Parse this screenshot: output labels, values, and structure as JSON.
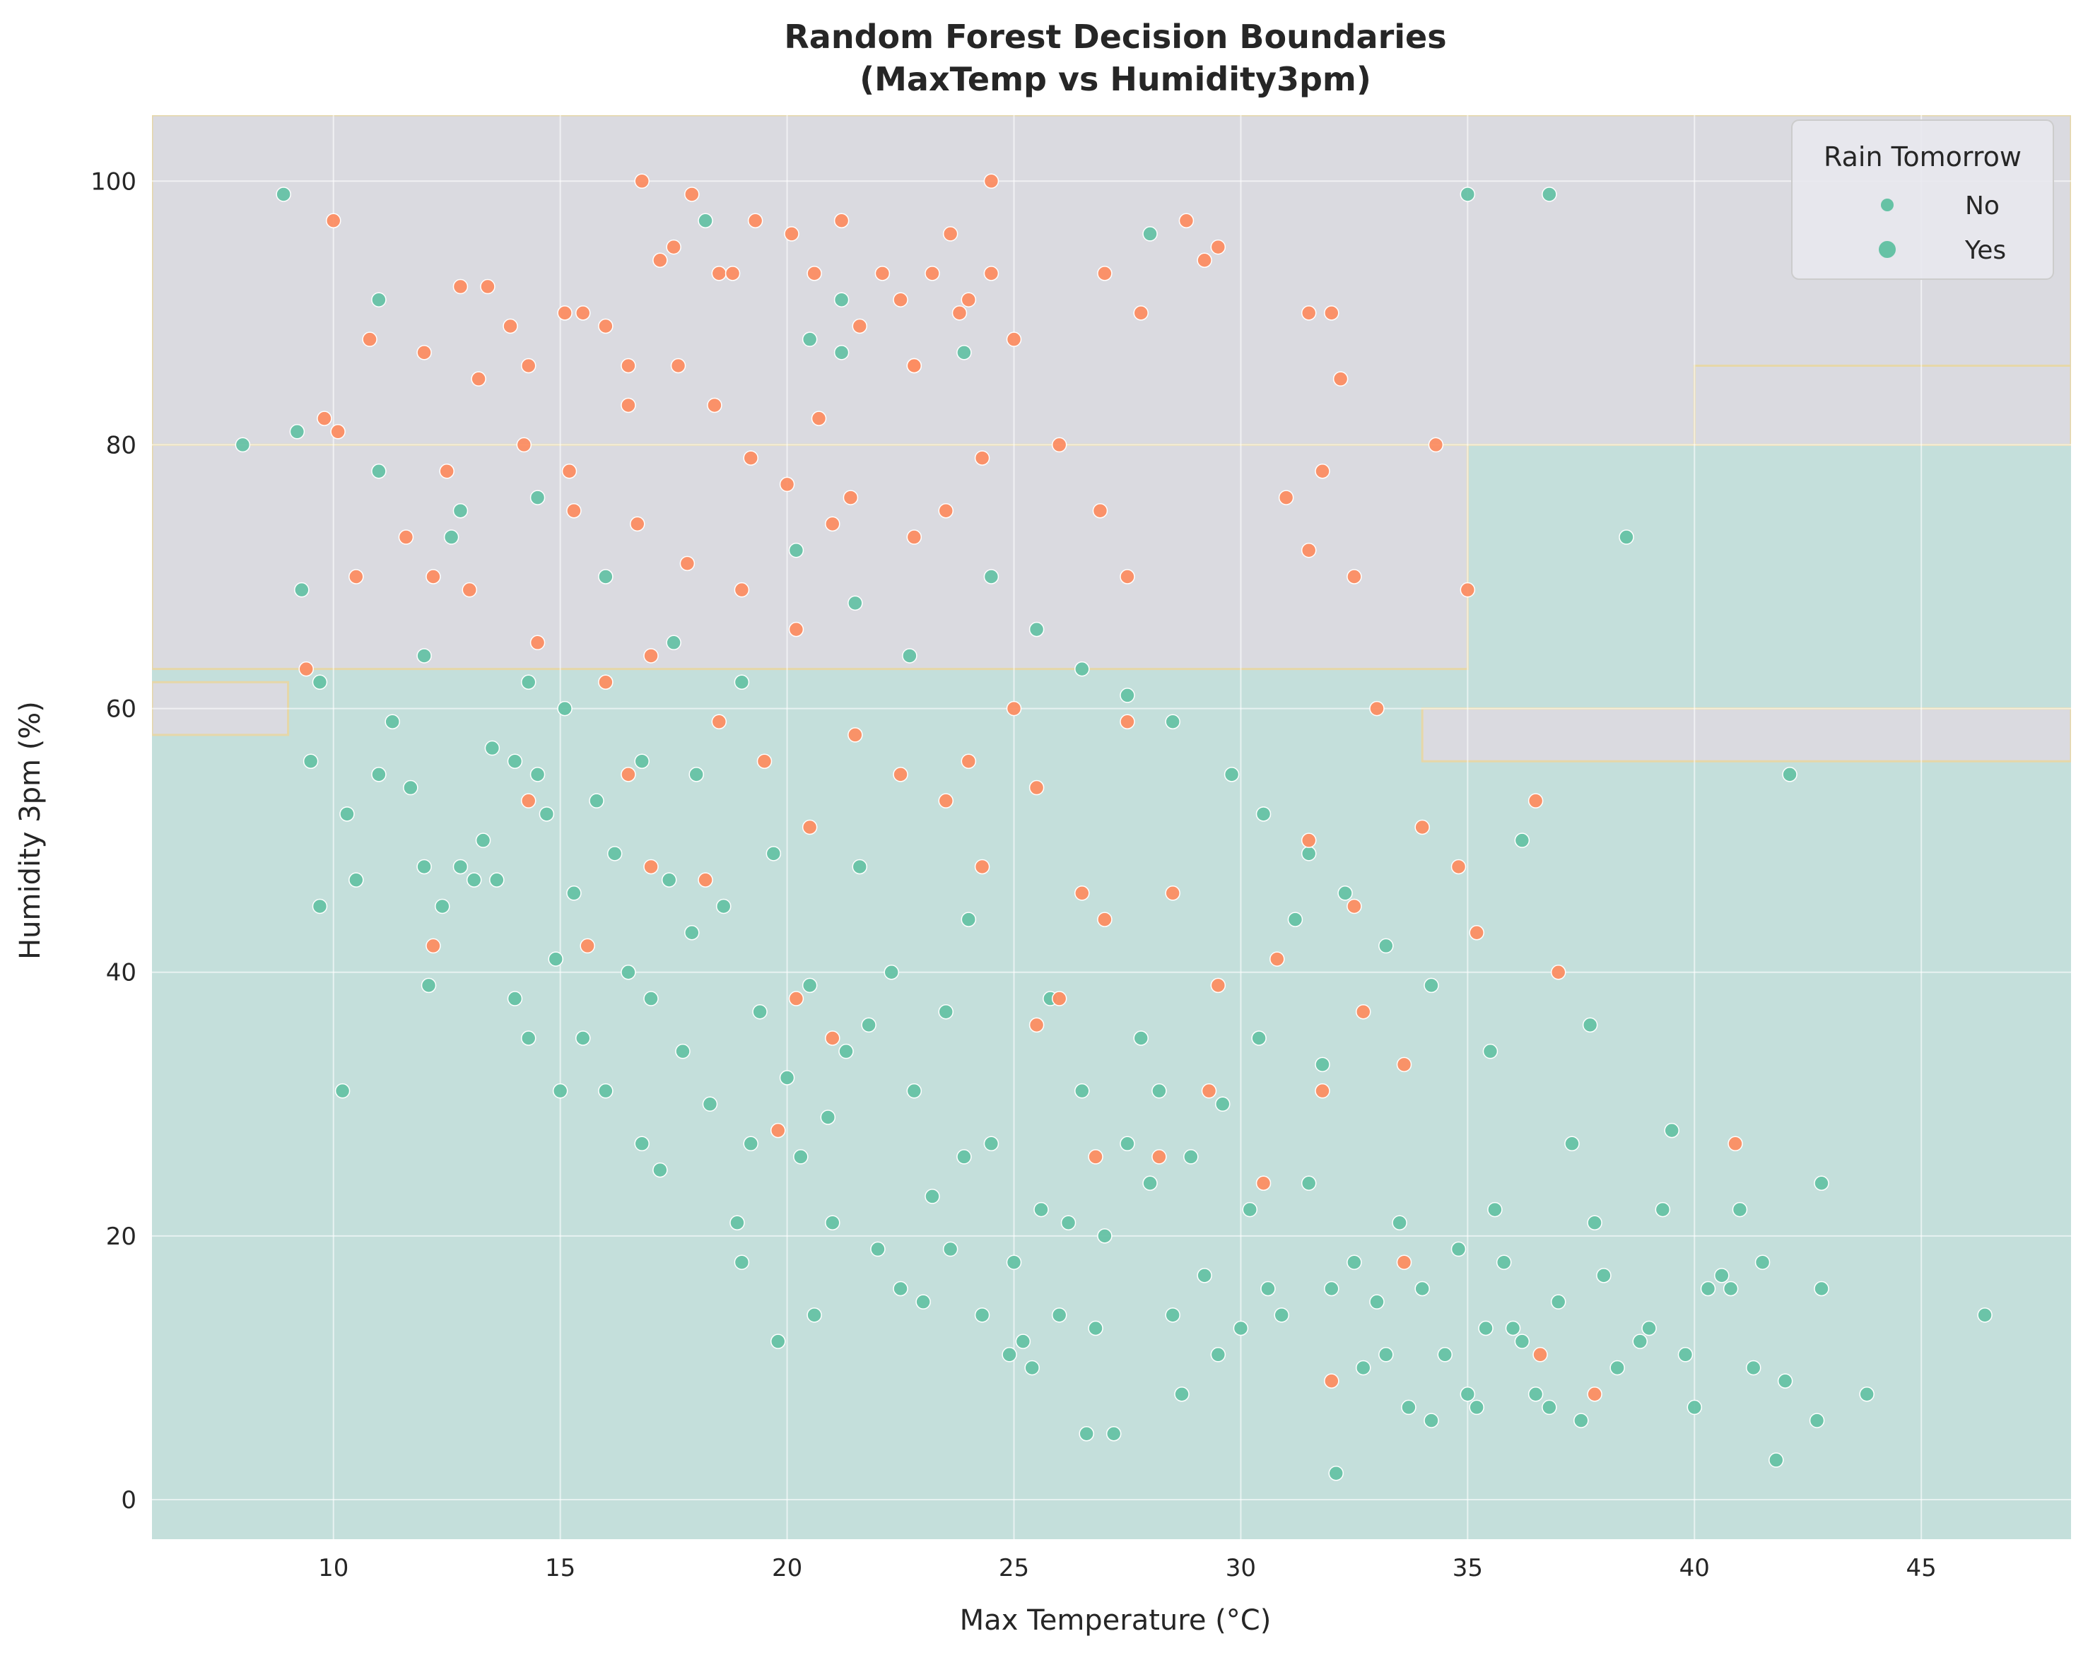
{
  "chart_data": {
    "type": "scatter",
    "title": "Random Forest Decision Boundaries\n(MaxTemp vs Humidity3pm)",
    "xlabel": "Max Temperature (°C)",
    "ylabel": "Humidity 3pm (%)",
    "xlim": [
      6,
      48.3
    ],
    "ylim": [
      -3,
      105
    ],
    "xticks": [
      10,
      15,
      20,
      25,
      30,
      35,
      40,
      45
    ],
    "yticks": [
      0,
      20,
      40,
      60,
      80,
      100
    ],
    "grid": true,
    "legend": {
      "title": "Rain Tomorrow",
      "placement": "top-right"
    },
    "background": {
      "description_class_regions": true,
      "no_region_color": "#c4dfdb",
      "yes_region_color": "#dadae0",
      "boundary_color": "#e6d7a8",
      "yes_regions": [
        {
          "x": [
            6,
            48.3
          ],
          "y": [
            80,
            105
          ]
        },
        {
          "x": [
            6,
            35
          ],
          "y": [
            63,
            80
          ]
        },
        {
          "x": [
            40,
            48.3
          ],
          "y": [
            80,
            86
          ]
        },
        {
          "x": [
            34,
            48.3
          ],
          "y": [
            56,
            60
          ]
        },
        {
          "x": [
            6,
            9
          ],
          "y": [
            58,
            62
          ]
        }
      ]
    },
    "series": [
      {
        "name": "No",
        "color": "#66c2a5",
        "points": [
          [
            8.9,
            99
          ],
          [
            8,
            80
          ],
          [
            9.3,
            69
          ],
          [
            9.2,
            81
          ],
          [
            9.5,
            56
          ],
          [
            9.7,
            62
          ],
          [
            9.7,
            45
          ],
          [
            10.3,
            52
          ],
          [
            10.2,
            31
          ],
          [
            10.5,
            47
          ],
          [
            11,
            55
          ],
          [
            11,
            78
          ],
          [
            11.3,
            59
          ],
          [
            11.7,
            54
          ],
          [
            12,
            64
          ],
          [
            12,
            48
          ],
          [
            12.1,
            39
          ],
          [
            12.4,
            45
          ],
          [
            12.6,
            73
          ],
          [
            12.8,
            48
          ],
          [
            12.8,
            75
          ],
          [
            13.1,
            47
          ],
          [
            13.3,
            50
          ],
          [
            13.5,
            57
          ],
          [
            13.6,
            47
          ],
          [
            14,
            56
          ],
          [
            14,
            38
          ],
          [
            14.3,
            62
          ],
          [
            14.3,
            35
          ],
          [
            14.5,
            55
          ],
          [
            14.7,
            52
          ],
          [
            14.9,
            41
          ],
          [
            15,
            31
          ],
          [
            15.1,
            60
          ],
          [
            15.3,
            46
          ],
          [
            15.5,
            35
          ],
          [
            15.8,
            53
          ],
          [
            16,
            31
          ],
          [
            16.2,
            49
          ],
          [
            16.5,
            40
          ],
          [
            16.8,
            56
          ],
          [
            16.8,
            27
          ],
          [
            17,
            38
          ],
          [
            17.2,
            25
          ],
          [
            17.4,
            47
          ],
          [
            17.7,
            34
          ],
          [
            17.9,
            43
          ],
          [
            18,
            55
          ],
          [
            18.3,
            30
          ],
          [
            18.6,
            45
          ],
          [
            18.9,
            21
          ],
          [
            19,
            18
          ],
          [
            19.2,
            27
          ],
          [
            19.4,
            37
          ],
          [
            19.7,
            49
          ],
          [
            19.8,
            12
          ],
          [
            20,
            32
          ],
          [
            20.3,
            26
          ],
          [
            20.5,
            39
          ],
          [
            20.6,
            14
          ],
          [
            20.9,
            29
          ],
          [
            21,
            21
          ],
          [
            21.3,
            34
          ],
          [
            21.6,
            48
          ],
          [
            21.8,
            36
          ],
          [
            22,
            19
          ],
          [
            22.3,
            40
          ],
          [
            22.5,
            16
          ],
          [
            22.8,
            31
          ],
          [
            23,
            15
          ],
          [
            23.2,
            23
          ],
          [
            23.5,
            37
          ],
          [
            23.6,
            19
          ],
          [
            23.9,
            26
          ],
          [
            24,
            44
          ],
          [
            24.3,
            14
          ],
          [
            24.5,
            27
          ],
          [
            24.9,
            11
          ],
          [
            25,
            18
          ],
          [
            25.2,
            12
          ],
          [
            25.4,
            10
          ],
          [
            25.6,
            22
          ],
          [
            25.8,
            38
          ],
          [
            26,
            14
          ],
          [
            26.2,
            21
          ],
          [
            26.5,
            31
          ],
          [
            26.6,
            5
          ],
          [
            26.8,
            13
          ],
          [
            27,
            20
          ],
          [
            27.2,
            5
          ],
          [
            27.5,
            27
          ],
          [
            27.8,
            35
          ],
          [
            28,
            24
          ],
          [
            28.2,
            31
          ],
          [
            28.5,
            14
          ],
          [
            28.7,
            8
          ],
          [
            28.9,
            26
          ],
          [
            29.2,
            17
          ],
          [
            29.5,
            11
          ],
          [
            29.6,
            30
          ],
          [
            30,
            13
          ],
          [
            30.2,
            22
          ],
          [
            30.4,
            35
          ],
          [
            30.6,
            16
          ],
          [
            30.9,
            14
          ],
          [
            31.2,
            44
          ],
          [
            31.5,
            24
          ],
          [
            31.8,
            33
          ],
          [
            32,
            16
          ],
          [
            32.1,
            2
          ],
          [
            32.5,
            18
          ],
          [
            32.7,
            10
          ],
          [
            33,
            15
          ],
          [
            33.2,
            11
          ],
          [
            33.5,
            21
          ],
          [
            33.7,
            7
          ],
          [
            34,
            16
          ],
          [
            34.2,
            6
          ],
          [
            34.5,
            11
          ],
          [
            34.8,
            19
          ],
          [
            35,
            8
          ],
          [
            35.2,
            7
          ],
          [
            35.4,
            13
          ],
          [
            35.6,
            22
          ],
          [
            35.8,
            18
          ],
          [
            36,
            13
          ],
          [
            36.2,
            12
          ],
          [
            36.5,
            8
          ],
          [
            36.8,
            7
          ],
          [
            37,
            15
          ],
          [
            37.3,
            27
          ],
          [
            37.5,
            6
          ],
          [
            37.8,
            21
          ],
          [
            38,
            17
          ],
          [
            38.3,
            10
          ],
          [
            38.5,
            73
          ],
          [
            38.8,
            12
          ],
          [
            39,
            13
          ],
          [
            39.3,
            22
          ],
          [
            39.5,
            28
          ],
          [
            39.8,
            11
          ],
          [
            40,
            7
          ],
          [
            40.3,
            16
          ],
          [
            40.6,
            17
          ],
          [
            40.8,
            16
          ],
          [
            41,
            22
          ],
          [
            41.3,
            10
          ],
          [
            41.5,
            18
          ],
          [
            41.8,
            3
          ],
          [
            42,
            9
          ],
          [
            42.1,
            55
          ],
          [
            42.7,
            6
          ],
          [
            42.8,
            16
          ],
          [
            42.8,
            24
          ],
          [
            43.8,
            8
          ],
          [
            46.4,
            14
          ],
          [
            35,
            99
          ],
          [
            36.8,
            99
          ],
          [
            28,
            96
          ],
          [
            18.2,
            97
          ],
          [
            20.5,
            88
          ],
          [
            21.2,
            87
          ],
          [
            21.2,
            91
          ],
          [
            23.9,
            87
          ],
          [
            11,
            91
          ],
          [
            14.5,
            76
          ],
          [
            16,
            70
          ],
          [
            17.5,
            65
          ],
          [
            19,
            62
          ],
          [
            20.2,
            72
          ],
          [
            21.5,
            68
          ],
          [
            22.7,
            64
          ],
          [
            24.5,
            70
          ],
          [
            25.5,
            66
          ],
          [
            26.5,
            63
          ],
          [
            27.5,
            61
          ],
          [
            28.5,
            59
          ],
          [
            29.8,
            55
          ],
          [
            30.5,
            52
          ],
          [
            31.5,
            49
          ],
          [
            32.3,
            46
          ],
          [
            33.2,
            42
          ],
          [
            34.2,
            39
          ],
          [
            35.5,
            34
          ],
          [
            36.2,
            50
          ],
          [
            37.7,
            36
          ]
        ]
      },
      {
        "name": "Yes",
        "color": "#fc8d62",
        "points": [
          [
            10,
            97
          ],
          [
            10.1,
            81
          ],
          [
            10.8,
            88
          ],
          [
            12,
            87
          ],
          [
            12.8,
            92
          ],
          [
            13.4,
            92
          ],
          [
            13.9,
            89
          ],
          [
            14.3,
            86
          ],
          [
            15.1,
            90
          ],
          [
            15.5,
            90
          ],
          [
            16,
            89
          ],
          [
            16.5,
            86
          ],
          [
            16.8,
            100
          ],
          [
            17.2,
            94
          ],
          [
            17.5,
            95
          ],
          [
            17.9,
            99
          ],
          [
            18.5,
            93
          ],
          [
            18.8,
            93
          ],
          [
            19.3,
            97
          ],
          [
            20.1,
            96
          ],
          [
            20.6,
            93
          ],
          [
            21.2,
            97
          ],
          [
            21.6,
            89
          ],
          [
            22.1,
            93
          ],
          [
            22.5,
            91
          ],
          [
            22.8,
            86
          ],
          [
            23.2,
            93
          ],
          [
            23.6,
            96
          ],
          [
            24,
            91
          ],
          [
            24.5,
            100
          ],
          [
            24.5,
            93
          ],
          [
            25,
            88
          ],
          [
            27,
            93
          ],
          [
            27.8,
            90
          ],
          [
            28.8,
            97
          ],
          [
            29.2,
            94
          ],
          [
            29.5,
            95
          ],
          [
            31.5,
            90
          ],
          [
            32,
            90
          ],
          [
            32.2,
            85
          ],
          [
            31,
            76
          ],
          [
            31.8,
            78
          ],
          [
            31.5,
            72
          ],
          [
            32.5,
            70
          ],
          [
            33,
            60
          ],
          [
            34.3,
            80
          ],
          [
            35,
            69
          ],
          [
            36.5,
            53
          ],
          [
            34,
            51
          ],
          [
            35.2,
            43
          ],
          [
            34.8,
            48
          ],
          [
            33.6,
            33
          ],
          [
            33.6,
            18
          ],
          [
            36.6,
            11
          ],
          [
            37.8,
            8
          ],
          [
            32,
            9
          ],
          [
            37,
            40
          ],
          [
            40.9,
            27
          ],
          [
            27.5,
            70
          ],
          [
            26.9,
            75
          ],
          [
            26,
            80
          ],
          [
            24.3,
            79
          ],
          [
            23.5,
            75
          ],
          [
            22.8,
            73
          ],
          [
            21,
            74
          ],
          [
            20,
            77
          ],
          [
            19.2,
            79
          ],
          [
            18.4,
            83
          ],
          [
            17.6,
            86
          ],
          [
            16.5,
            83
          ],
          [
            15.2,
            78
          ],
          [
            14.2,
            80
          ],
          [
            13.2,
            85
          ],
          [
            12.5,
            78
          ],
          [
            11.6,
            73
          ],
          [
            10.5,
            70
          ],
          [
            9.8,
            82
          ],
          [
            9.4,
            63
          ],
          [
            16,
            62
          ],
          [
            17,
            64
          ],
          [
            18.5,
            59
          ],
          [
            19.5,
            56
          ],
          [
            20.5,
            51
          ],
          [
            21.5,
            58
          ],
          [
            22.5,
            55
          ],
          [
            23.5,
            53
          ],
          [
            24.3,
            48
          ],
          [
            25,
            60
          ],
          [
            25.5,
            54
          ],
          [
            26.5,
            46
          ],
          [
            27.5,
            59
          ],
          [
            28.5,
            46
          ],
          [
            29.5,
            39
          ],
          [
            30.8,
            41
          ],
          [
            31.5,
            50
          ],
          [
            32.5,
            45
          ],
          [
            22.8,
            86
          ],
          [
            23.8,
            90
          ],
          [
            20.2,
            66
          ],
          [
            19,
            69
          ],
          [
            17.8,
            71
          ],
          [
            16.7,
            74
          ],
          [
            15.3,
            75
          ],
          [
            14.5,
            65
          ],
          [
            13,
            69
          ],
          [
            12.2,
            70
          ],
          [
            21.4,
            76
          ],
          [
            20.7,
            82
          ],
          [
            24,
            56
          ],
          [
            25.5,
            36
          ],
          [
            26,
            38
          ],
          [
            26.8,
            26
          ],
          [
            27,
            44
          ],
          [
            28.2,
            26
          ],
          [
            29.3,
            31
          ],
          [
            30.5,
            24
          ],
          [
            31.8,
            31
          ],
          [
            32.7,
            37
          ],
          [
            20.2,
            38
          ],
          [
            19.8,
            28
          ],
          [
            21,
            35
          ],
          [
            18.2,
            47
          ],
          [
            16.5,
            55
          ],
          [
            17,
            48
          ],
          [
            14.3,
            53
          ],
          [
            12.2,
            42
          ],
          [
            15.6,
            42
          ]
        ]
      }
    ]
  }
}
